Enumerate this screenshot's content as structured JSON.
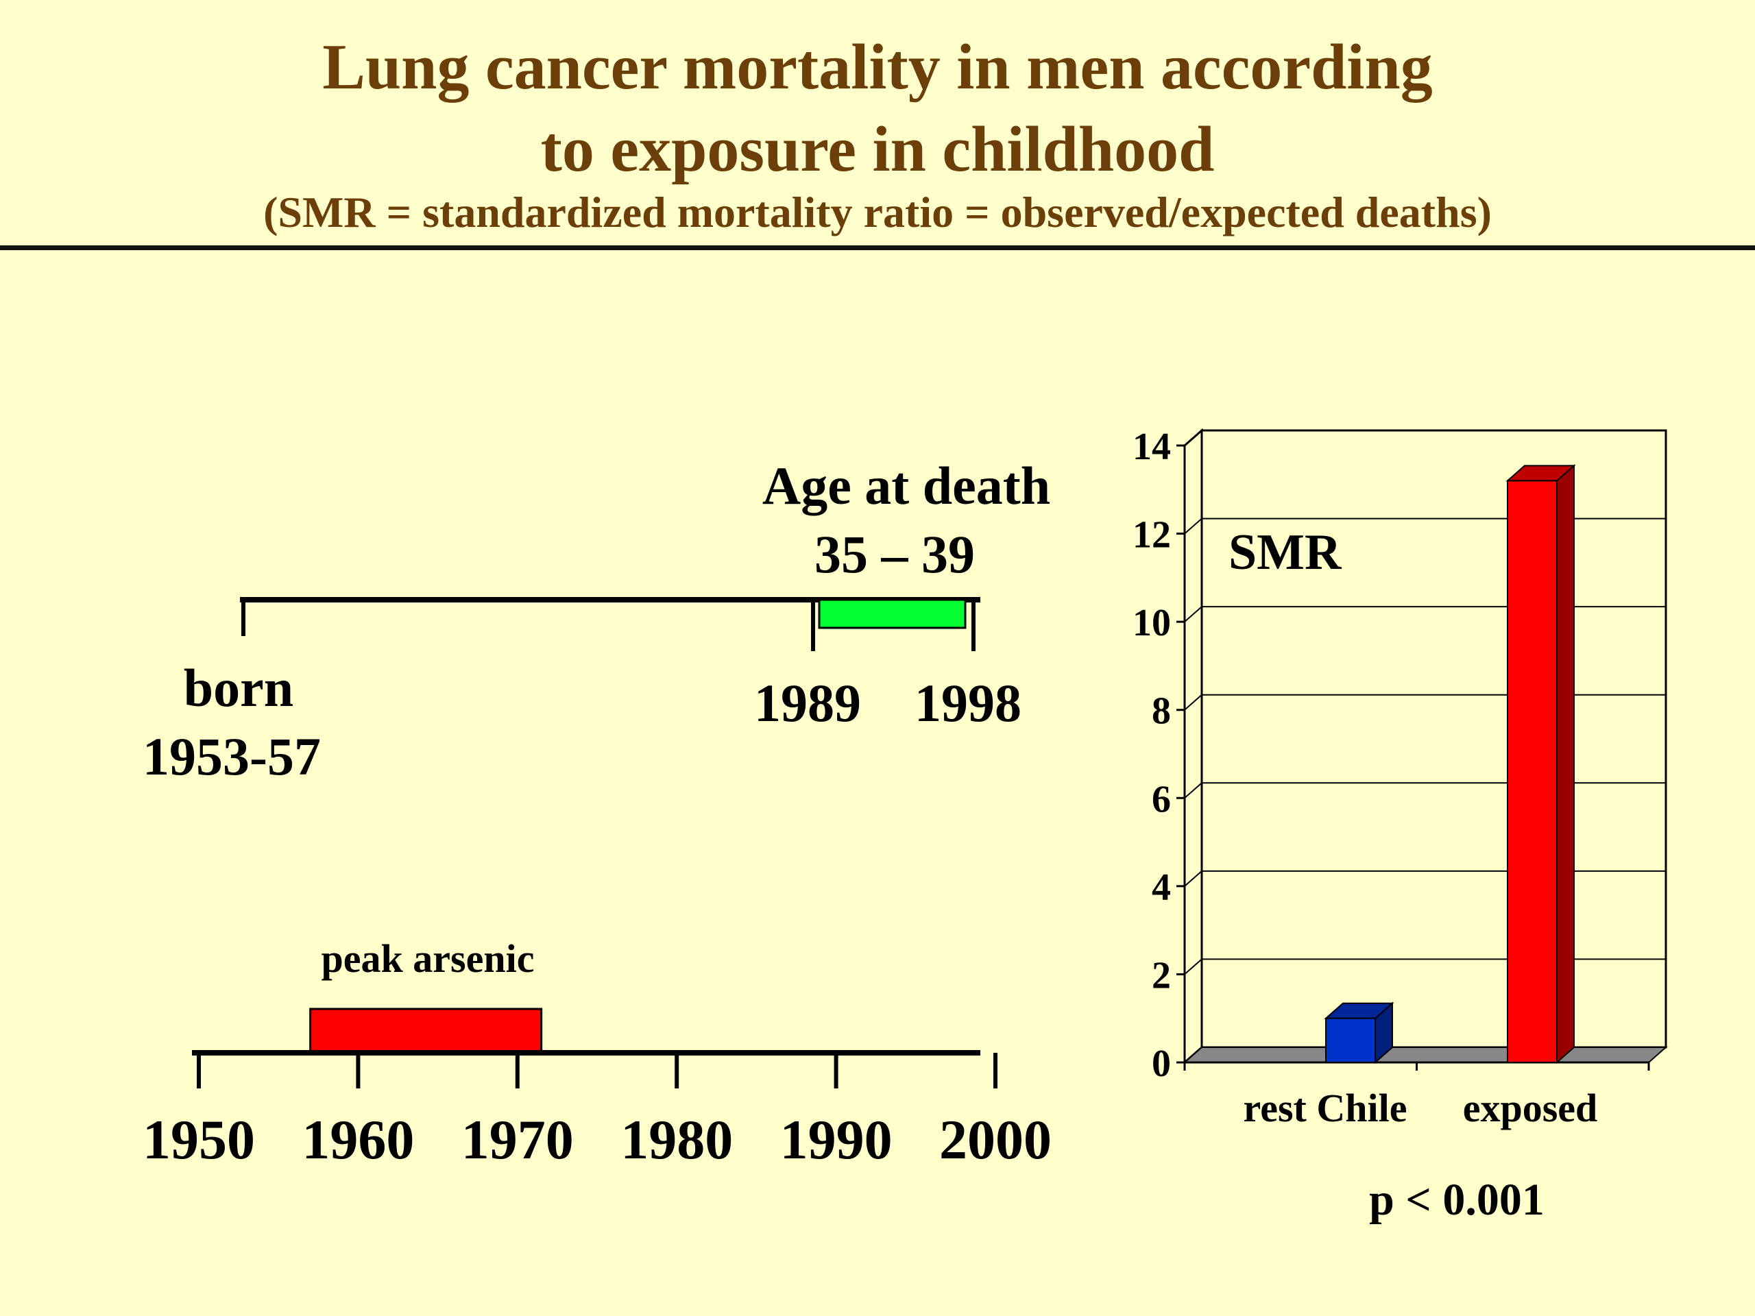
{
  "slide": {
    "title_line1": "Lung cancer mortality in men according",
    "title_line2": "to exposure in childhood",
    "subtitle": "(SMR = standardized mortality ratio = observed/expected deaths)"
  },
  "life_timeline": {
    "age_label_line1": "Age at death",
    "age_label_line2": "35 – 39",
    "born_label_line1": "born",
    "born_label_line2": "1953-57",
    "death_start_label": "1989",
    "death_end_label": "1998",
    "death_start_year": 1989,
    "death_end_year": 1998,
    "born_year": 1955,
    "line_end_year": 1999,
    "death_bar_color": "#00FF33"
  },
  "year_axis": {
    "peak_label": "peak arsenic",
    "peak_start_year": 1957,
    "peak_end_year": 1971.5,
    "peak_bar_color": "#FF0000",
    "axis_start_year": 1950,
    "axis_end_year": 2000,
    "ticks": [
      "1950",
      "1960",
      "1970",
      "1980",
      "1990",
      "2000"
    ]
  },
  "chart_data": {
    "type": "bar",
    "title": "SMR",
    "categories": [
      "rest Chile",
      "exposed"
    ],
    "values": [
      1,
      13.2
    ],
    "colors": [
      "#0033CC",
      "#FF0000"
    ],
    "ylim": [
      0,
      14
    ],
    "yticks": [
      "0",
      "2",
      "4",
      "6",
      "8",
      "10",
      "12",
      "14"
    ],
    "grid": true,
    "annotation": "p < 0.001"
  }
}
